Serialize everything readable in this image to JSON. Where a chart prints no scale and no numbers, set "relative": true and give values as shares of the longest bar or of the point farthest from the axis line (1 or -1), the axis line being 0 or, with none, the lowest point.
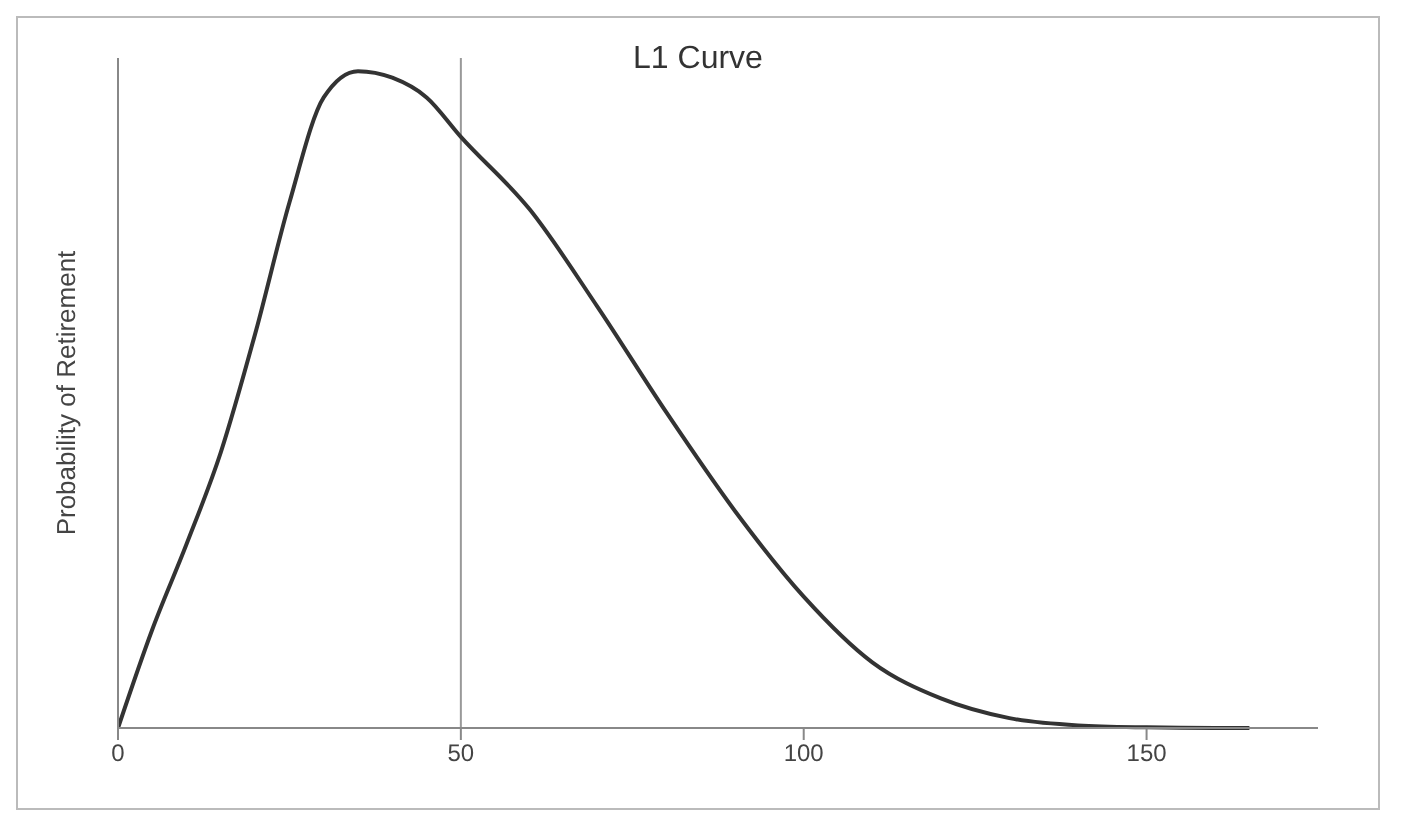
{
  "chart_data": {
    "type": "line",
    "title": "L1 Curve",
    "ylabel": "Probability of Retirement",
    "relative": true,
    "x": [
      0,
      5,
      10,
      15,
      20,
      25,
      30,
      35,
      40,
      45,
      50,
      60,
      70,
      80,
      90,
      100,
      110,
      120,
      130,
      140,
      150,
      160,
      165
    ],
    "series": [
      {
        "color": "#333333",
        "values": [
          0,
          0.15,
          0.28,
          0.42,
          0.6,
          0.8,
          0.96,
          1,
          0.99,
          0.96,
          0.9,
          0.79,
          0.64,
          0.48,
          0.33,
          0.2,
          0.1,
          0.045,
          0.015,
          0.004,
          0.001,
          0,
          0
        ]
      }
    ],
    "xlim": [
      0,
      175
    ],
    "xticks": [
      0,
      50,
      100,
      150
    ],
    "grid": false,
    "marker": "none",
    "line_style": "solid",
    "ref_lines": [
      {
        "axis": "x",
        "value": 50,
        "color": "#999999"
      }
    ]
  }
}
